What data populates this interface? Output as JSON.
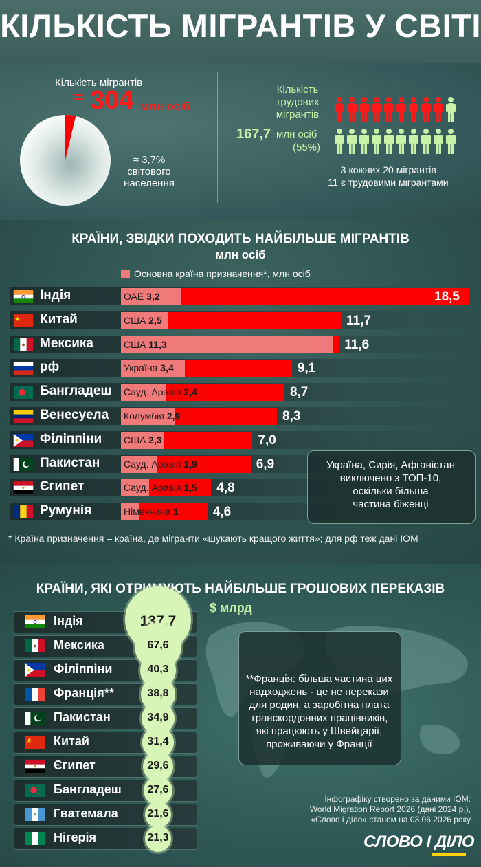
{
  "title": "КІЛЬКІСТЬ МІГРАНТІВ У СВІТІ",
  "top": {
    "migrants_label": "Кількість мігрантів",
    "approx": "≈",
    "migrants_value": "304",
    "migrants_unit": "млн осіб",
    "share_text": [
      "≈ 3,7%",
      "світового",
      "населення"
    ],
    "share_fraction": 0.037,
    "labor_label": [
      "Кількість",
      "трудових",
      "мігрантів"
    ],
    "labor_value": "167,7",
    "labor_unit": "млн осіб",
    "labor_pct": "(55%)",
    "labor_note": [
      "З кожних 20 мігрантів",
      "11 є трудовими мігрантами"
    ],
    "labor_of_20": 11,
    "colors": {
      "red": "#ff1a1a",
      "green": "#c9f2a8"
    }
  },
  "origin": {
    "title": "КРАЇНИ, ЗВІДКИ ПОХОДИТЬ НАЙБІЛЬШЕ МІГРАНТІВ",
    "subtitle": "млн осіб",
    "legend": "Основна країна призначення*, млн осіб",
    "note": [
      "Україна, Сирія, Афганістан",
      "виключено з ТОП-10,",
      "оскільки більша",
      "частина біженці"
    ],
    "footnote": "* Країна призначення – країна, де мігранти «шукають кращого життя»; для рф теж дані IOM"
  },
  "chart_data": [
    {
      "type": "bar",
      "title": "КРАЇНИ, ЗВІДКИ ПОХОДИТЬ НАЙБІЛЬШЕ МІГРАНТІВ",
      "subtitle": "млн осіб",
      "categories": [
        "Індія",
        "Китай",
        "Мексика",
        "рф",
        "Бангладеш",
        "Венесуела",
        "Філіппіни",
        "Пакистан",
        "Єгипет",
        "Румунія"
      ],
      "series": [
        {
          "name": "",
          "values": [
            18.5,
            11.7,
            11.6,
            9.1,
            8.7,
            8.3,
            7.0,
            6.9,
            4.8,
            4.6
          ],
          "labels": [
            "18,5",
            "11,7",
            "11,6",
            "9,1",
            "8,7",
            "8,3",
            "7,0",
            "6,9",
            "4,8",
            "4,6"
          ]
        },
        {
          "name": "Основна країна призначення*, млн осіб",
          "values": [
            3.2,
            2.5,
            11.3,
            3.4,
            2.4,
            2.9,
            2.3,
            1.9,
            1.5,
            1.0
          ],
          "labels": [
            "3,2",
            "2,5",
            "11,3",
            "3,4",
            "2,4",
            "2,9",
            "2,3",
            "1,9",
            "1,5",
            "1"
          ]
        }
      ],
      "destinations": [
        "ОАЕ",
        "США",
        "США",
        "Україна",
        "Сауд. Аравія",
        "Колумбія",
        "США",
        "Сауд. Аравія",
        "Сауд. Аравія",
        "Німеччина"
      ],
      "flags": [
        "in",
        "cn",
        "mx",
        "ru",
        "bd",
        "ve",
        "ph",
        "pk",
        "eg",
        "ro"
      ],
      "xlim": [
        0,
        18.5
      ]
    },
    {
      "type": "bar",
      "title": "КРАЇНИ, ЯКІ ОТРИМУЮТЬ НАЙБІЛЬШЕ ГРОШОВИХ ПЕРЕКАЗІВ",
      "subtitle": "$ млрд",
      "categories": [
        "Індія",
        "Мексика",
        "Філіппіни",
        "Франція**",
        "Пакистан",
        "Китай",
        "Єгипет",
        "Бангладеш",
        "Гватемала",
        "Нігерія"
      ],
      "values": [
        137.7,
        67.6,
        40.3,
        38.8,
        34.9,
        31.4,
        29.6,
        27.6,
        21.6,
        21.3
      ],
      "labels": [
        "137,7",
        "67,6",
        "40,3",
        "38,8",
        "34,9",
        "31,4",
        "29,6",
        "27,6",
        "21,6",
        "21,3"
      ],
      "flags": [
        "in",
        "mx",
        "ph",
        "fr",
        "pk",
        "cn",
        "eg",
        "bd",
        "gt",
        "ng"
      ]
    }
  ],
  "remit": {
    "title": "КРАЇНИ, ЯКІ ОТРИМУЮТЬ НАЙБІЛЬШЕ ГРОШОВИХ ПЕРЕКАЗІВ",
    "subtitle": "$ млрд",
    "note": [
      "**Франція: більша частина цих",
      "надходжень - це не перекази",
      "для родин, а заробітна плата",
      "транскордонних працівників,",
      "які працюють у Швейцарії,",
      "проживаючи у Франції"
    ]
  },
  "source": [
    "Інфографіку створено за даними IOM:",
    "World Migration Report 2026 (дані 2024 р.),",
    "«Слово і діло» станом на 03.06.2026 року"
  ],
  "logo": "СЛОВО І ДІЛО",
  "watermark": "СЛОВО І ДІЛО"
}
